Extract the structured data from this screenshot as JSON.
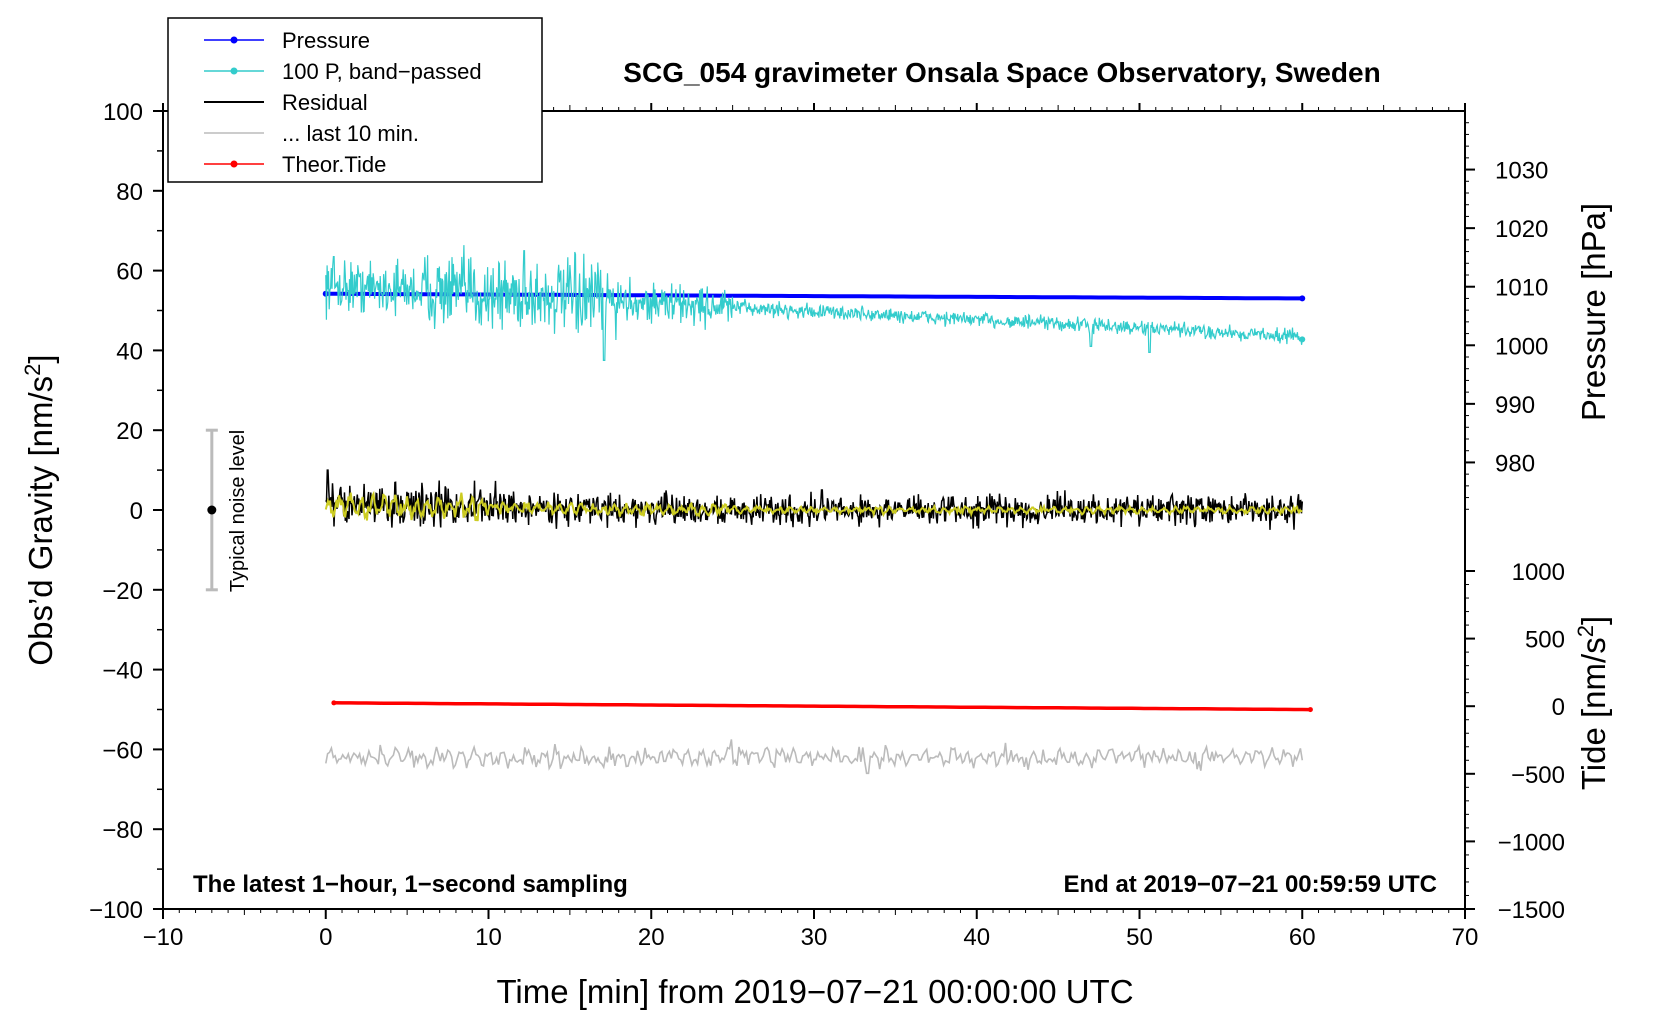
{
  "chart_data": {
    "type": "line",
    "title": "SCG_054 gravimeter Onsala Space Observatory, Sweden",
    "xlabel": "Time [min] from 2019−07−21 00:00:00 UTC",
    "ylabel_left_main": "Obs’d Gravity [nm/s",
    "ylabel_left_sup": "2",
    "ylabel_left_end": "]",
    "ylabel_right_pressure": "Pressure [hPa]",
    "ylabel_right_tide_main": "Tide [nm/s",
    "ylabel_right_tide_sup": "2",
    "ylabel_right_tide_end": "]",
    "xlim": [
      -10,
      70
    ],
    "ylim": [
      -100,
      100
    ],
    "pressure_ylim": [
      970,
      1040
    ],
    "tide_ylim": [
      -1500,
      1000
    ],
    "x_ticks": [
      "−10",
      "0",
      "10",
      "20",
      "30",
      "40",
      "50",
      "60",
      "70"
    ],
    "y_ticks": [
      "−100",
      "−80",
      "−60",
      "−40",
      "−20",
      "0",
      "20",
      "40",
      "60",
      "80",
      "100"
    ],
    "pressure_ticks": [
      "980",
      "990",
      "1000",
      "1010",
      "1020",
      "1030"
    ],
    "tide_ticks": [
      "−1500",
      "−1000",
      "−500",
      "0",
      "500",
      "1000"
    ],
    "legend": [
      {
        "label": "Pressure",
        "color": "#0000ff",
        "marker": true
      },
      {
        "label": "100 P, band−passed",
        "color": "#33cccc",
        "marker": true
      },
      {
        "label": "Residual",
        "color": "#000000",
        "marker": false
      },
      {
        "label": "... last 10 min.",
        "color": "#bbbbbb",
        "marker": false
      },
      {
        "label": "Theor.Tide",
        "color": "#ff0000",
        "marker": true
      }
    ],
    "noise_label": "Typical noise level",
    "noise_bar": {
      "x": -7,
      "center": 0,
      "low": -20,
      "high": 20
    },
    "note_left": "The latest 1−hour, 1−second sampling",
    "note_right": "End at 2019−07−21 00:59:59 UTC",
    "series": [
      {
        "name": "Pressure",
        "axis": "pressure",
        "color": "#0000ff",
        "x_range": [
          0,
          60
        ],
        "start": 1008.8,
        "end": 1008.0
      },
      {
        "name": "100 P, band-passed",
        "axis": "gravity",
        "color": "#33cccc",
        "x_range": [
          0,
          60
        ],
        "start": 56,
        "end": 43.5
      },
      {
        "name": "Residual",
        "axis": "gravity",
        "color": "#000000",
        "x_range": [
          0,
          60
        ],
        "start": 0,
        "end": 0
      },
      {
        "name": "Residual smoothed",
        "axis": "gravity",
        "color": "#cccc22",
        "x_range": [
          0,
          60
        ],
        "start": 0,
        "end": 0
      },
      {
        "name": "... last 10 min.",
        "axis": "gravity",
        "color": "#bbbbbb",
        "x_range": [
          0,
          60
        ],
        "start": -62,
        "end": -62
      },
      {
        "name": "Theor.Tide",
        "axis": "tide",
        "color": "#ff0000",
        "x_range": [
          0.5,
          60.5
        ],
        "start": 25,
        "end": -25
      }
    ]
  }
}
